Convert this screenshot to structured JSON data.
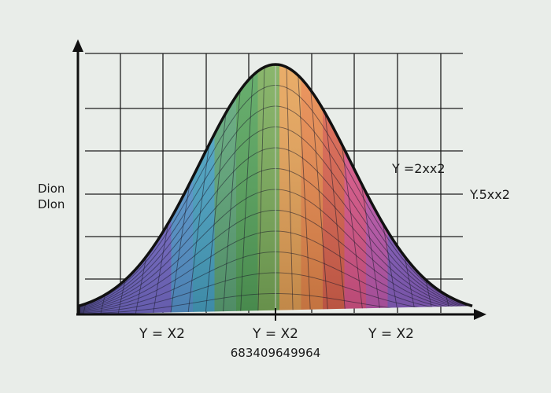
{
  "chart_data": {
    "type": "area",
    "title": "",
    "ylabel_lines": [
      "Dion",
      "Dlon"
    ],
    "xlabel": "683409649964",
    "x_tick_labels": [
      "Y = X2",
      "Y = X2",
      "Y = X2"
    ],
    "annotations": [
      "Y =2xx2",
      "Y.5xx2"
    ],
    "grid": true,
    "curve_shape": "bell",
    "fill": "rainbow gradient mesh",
    "colors": {
      "background": "#e9ede9",
      "axis": "#111111",
      "grid": "#1e1e1e",
      "stripes": [
        "#7a6fd0",
        "#5a9bd6",
        "#4aa7c9",
        "#5fa97a",
        "#56a65c",
        "#7cae5a",
        "#e9a457",
        "#ec8a4c",
        "#e0654f",
        "#e0588d",
        "#c45cb4",
        "#8e63c8"
      ]
    }
  }
}
